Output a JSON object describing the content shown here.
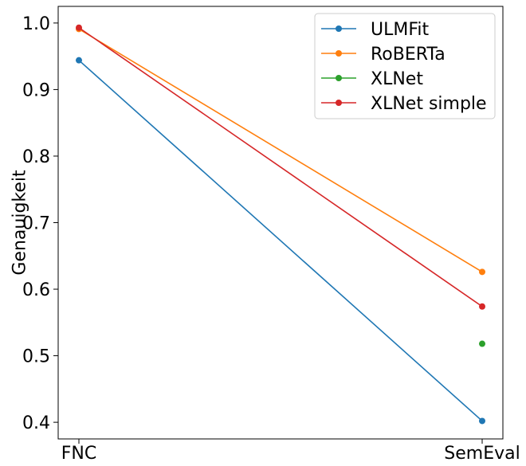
{
  "chart_data": {
    "type": "line",
    "categories": [
      "FNC",
      "SemEval"
    ],
    "ylabel": "Genauigkeit",
    "xlabel": "",
    "ylim": [
      0.375,
      1.025
    ],
    "yticks": [
      0.4,
      0.5,
      0.6,
      0.7,
      0.8,
      0.9,
      1.0
    ],
    "ytick_labels": [
      "0.4",
      "0.5",
      "0.6",
      "0.7",
      "0.8",
      "0.9",
      "1.0"
    ],
    "grid": false,
    "legend_position": "top-right",
    "series": [
      {
        "name": "ULMFit",
        "color": "#1f77b4",
        "values": [
          0.944,
          0.402
        ]
      },
      {
        "name": "RoBERTa",
        "color": "#ff7f0e",
        "values": [
          0.991,
          0.626
        ]
      },
      {
        "name": "XLNet",
        "color": "#2ca02c",
        "values": [
          null,
          0.518
        ]
      },
      {
        "name": "XLNet simple",
        "color": "#d62728",
        "values": [
          0.993,
          0.574
        ]
      }
    ]
  }
}
